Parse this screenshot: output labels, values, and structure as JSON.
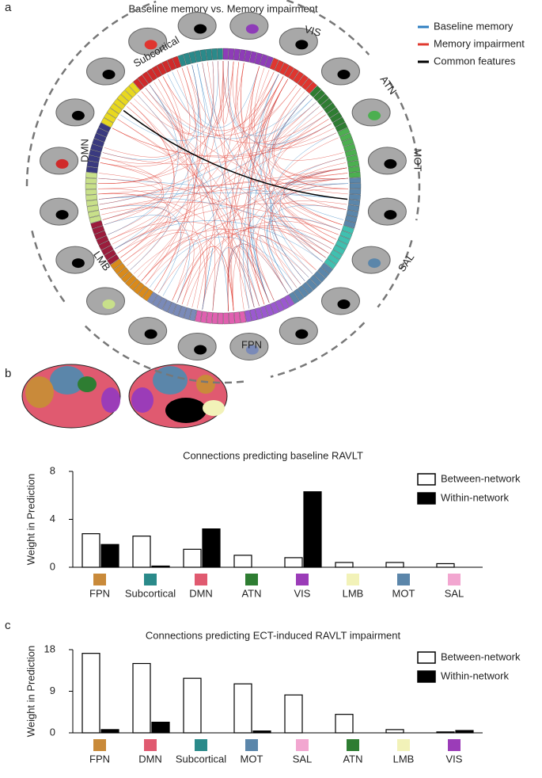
{
  "panels": {
    "a": {
      "label": "a",
      "title": "Baseline memory vs. Memory impairment",
      "legend": [
        {
          "name": "Baseline memory",
          "color": "#2f7fc1"
        },
        {
          "name": "Memory impairment",
          "color": "#e03a2f"
        },
        {
          "name": "Common features",
          "color": "#000000"
        }
      ],
      "networks": [
        "VIS",
        "ATN",
        "MOT",
        "SAL",
        "FPN",
        "LMB",
        "DMN",
        "Subcortical"
      ]
    },
    "b": {
      "label": "b"
    },
    "c": {
      "label": "c"
    }
  },
  "chart_data": [
    {
      "type": "bar",
      "title": "Connections predicting baseline RAVLT",
      "y_label": "Weight in Prediction",
      "categories": [
        "FPN",
        "Subcortical",
        "DMN",
        "ATN",
        "VIS",
        "LMB",
        "MOT",
        "SAL"
      ],
      "category_colors": [
        "#c98a3a",
        "#2a8a8a",
        "#e05a70",
        "#2e7d32",
        "#9b3cb8",
        "#f2f2b8",
        "#5b86aa",
        "#f2a6d0"
      ],
      "series": [
        {
          "name": "Between-network",
          "color": "#ffffff",
          "values": [
            2.8,
            2.6,
            1.5,
            1.0,
            0.8,
            0.4,
            0.4,
            0.3
          ]
        },
        {
          "name": "Within-network",
          "color": "#000000",
          "values": [
            1.9,
            0.1,
            3.2,
            0,
            6.3,
            0,
            0,
            0
          ]
        }
      ],
      "ylim": [
        0,
        8
      ],
      "yticks": [
        0,
        4,
        8
      ]
    },
    {
      "type": "bar",
      "title": "Connections predicting ECT-induced RAVLT impairment",
      "y_label": "Weight in Prediction",
      "categories": [
        "FPN",
        "DMN",
        "Subcortical",
        "MOT",
        "SAL",
        "ATN",
        "LMB",
        "VIS"
      ],
      "category_colors": [
        "#c98a3a",
        "#e05a70",
        "#2a8a8a",
        "#5b86aa",
        "#f2a6d0",
        "#2e7d32",
        "#f2f2b8",
        "#9b3cb8"
      ],
      "series": [
        {
          "name": "Between-network",
          "color": "#ffffff",
          "values": [
            17.2,
            15.0,
            11.8,
            10.6,
            8.2,
            4.0,
            0.7,
            0.2
          ]
        },
        {
          "name": "Within-network",
          "color": "#000000",
          "values": [
            0.7,
            2.3,
            0,
            0.4,
            0,
            0,
            0,
            0.5
          ]
        }
      ],
      "ylim": [
        0,
        18
      ],
      "yticks": [
        0,
        9,
        18
      ]
    }
  ]
}
